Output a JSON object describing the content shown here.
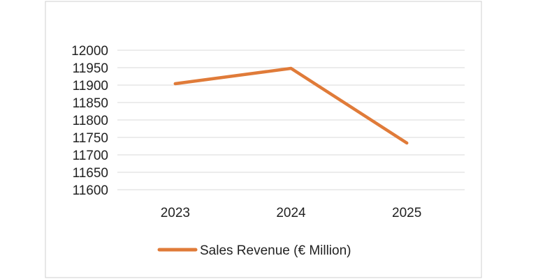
{
  "chart_data": {
    "type": "line",
    "title": "",
    "xlabel": "",
    "ylabel": "",
    "categories": [
      "2023",
      "2024",
      "2025"
    ],
    "series": [
      {
        "name": "Sales Revenue (€ Million)",
        "values": [
          11904,
          11948,
          11734
        ],
        "color": "#E07B39"
      }
    ],
    "ylim": [
      11600,
      12000
    ],
    "ytick_step": 50,
    "yticks": [
      "11600",
      "11650",
      "11700",
      "11750",
      "11800",
      "11850",
      "11900",
      "11950",
      "12000"
    ],
    "grid": true,
    "legend_position": "bottom"
  },
  "colors": {
    "gridline": "#d9d9d9",
    "frame": "#cfcfcf",
    "text": "#222222"
  }
}
